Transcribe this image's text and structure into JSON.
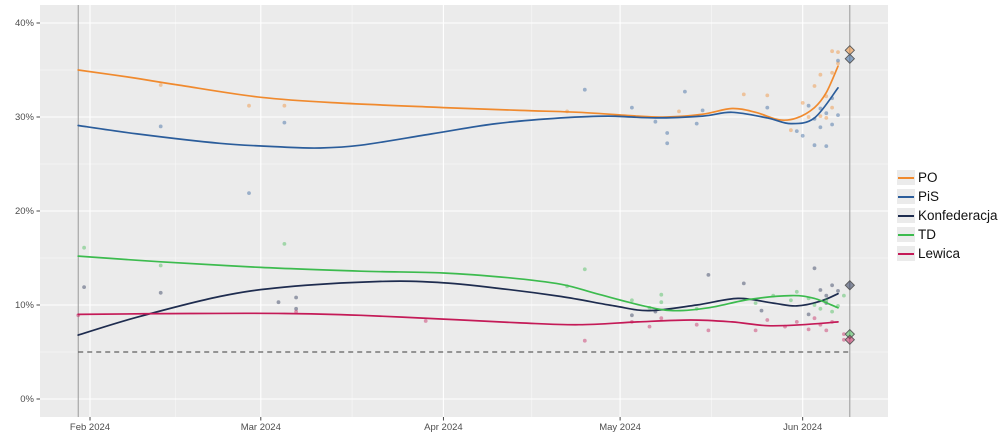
{
  "chart_data": {
    "type": "line",
    "title": "",
    "xlabel": "",
    "ylabel": "",
    "x_axis": {
      "unit": "day-of-year-2024",
      "ticks": [
        {
          "label": "Feb 2024",
          "day": 32
        },
        {
          "label": "Mar 2024",
          "day": 61
        },
        {
          "label": "Apr 2024",
          "day": 92
        },
        {
          "label": "May 2024",
          "day": 122
        },
        {
          "label": "Jun 2024",
          "day": 153
        }
      ],
      "minor_days": [
        46.5,
        76.5,
        107,
        137.5
      ]
    },
    "y_axis": {
      "ticks": [
        {
          "label": "0%",
          "value": 0
        },
        {
          "label": "10%",
          "value": 10
        },
        {
          "label": "20%",
          "value": 20
        },
        {
          "label": "30%",
          "value": 30
        },
        {
          "label": "40%",
          "value": 40
        }
      ],
      "minor_values": [
        5,
        15,
        25,
        35
      ],
      "range": [
        -1.9,
        41.9
      ]
    },
    "grid": true,
    "legend_position": "right",
    "threshold": {
      "value": 5,
      "style": "dashed",
      "color": "#3c3c3c"
    },
    "ref_lines": [
      {
        "day": 30,
        "name": "series-start"
      },
      {
        "day": 161,
        "name": "election-day"
      }
    ],
    "series": [
      {
        "name": "PO",
        "color": "#f08a2e",
        "result_day": 161,
        "result_pct": 37.1,
        "trend": [
          [
            30,
            35.0
          ],
          [
            39,
            34.2
          ],
          [
            47,
            33.4
          ],
          [
            61,
            32.1
          ],
          [
            74,
            31.5
          ],
          [
            92,
            31.0
          ],
          [
            105,
            30.7
          ],
          [
            115,
            30.5
          ],
          [
            125,
            30.1
          ],
          [
            130,
            30.0
          ],
          [
            136,
            30.3
          ],
          [
            141,
            30.9
          ],
          [
            145,
            30.5
          ],
          [
            149,
            29.7
          ],
          [
            152,
            29.9
          ],
          [
            155,
            31.0
          ],
          [
            157,
            32.6
          ],
          [
            159,
            35.4
          ]
        ],
        "polls": [
          [
            44,
            33.4
          ],
          [
            59,
            31.2
          ],
          [
            65,
            31.2
          ],
          [
            113,
            30.6
          ],
          [
            132,
            30.6
          ],
          [
            143,
            32.4
          ],
          [
            147,
            32.3
          ],
          [
            151,
            28.6
          ],
          [
            153,
            31.5
          ],
          [
            154,
            30.0
          ],
          [
            155,
            33.3
          ],
          [
            156,
            34.5
          ],
          [
            156,
            30.1
          ],
          [
            157,
            32.2
          ],
          [
            157,
            29.9
          ],
          [
            158,
            34.7
          ],
          [
            158,
            31.0
          ],
          [
            158,
            37.0
          ],
          [
            159,
            35.7
          ],
          [
            159,
            36.9
          ]
        ]
      },
      {
        "name": "PiS",
        "color": "#2b5d9b",
        "result_day": 161,
        "result_pct": 36.2,
        "trend": [
          [
            30,
            29.1
          ],
          [
            40,
            28.2
          ],
          [
            54,
            27.2
          ],
          [
            65,
            26.8
          ],
          [
            71,
            26.7
          ],
          [
            78,
            27.0
          ],
          [
            90,
            28.2
          ],
          [
            101,
            29.3
          ],
          [
            112,
            29.9
          ],
          [
            120,
            30.1
          ],
          [
            128,
            29.9
          ],
          [
            136,
            30.1
          ],
          [
            141,
            30.5
          ],
          [
            147,
            29.9
          ],
          [
            151,
            29.3
          ],
          [
            155,
            29.9
          ],
          [
            159,
            33.1
          ]
        ],
        "polls": [
          [
            44,
            29.0
          ],
          [
            59,
            21.9
          ],
          [
            65,
            29.4
          ],
          [
            116,
            32.9
          ],
          [
            124,
            31.0
          ],
          [
            128,
            29.5
          ],
          [
            130,
            28.3
          ],
          [
            130,
            27.2
          ],
          [
            133,
            32.7
          ],
          [
            135,
            29.3
          ],
          [
            136,
            30.7
          ],
          [
            147,
            31.0
          ],
          [
            152,
            28.5
          ],
          [
            153,
            28.0
          ],
          [
            154,
            31.2
          ],
          [
            155,
            29.8
          ],
          [
            155,
            27.0
          ],
          [
            156,
            30.9
          ],
          [
            156,
            28.9
          ],
          [
            157,
            30.4
          ],
          [
            157,
            26.9
          ],
          [
            158,
            29.2
          ],
          [
            158,
            32.0
          ],
          [
            159,
            30.2
          ],
          [
            159,
            36.0
          ]
        ]
      },
      {
        "name": "Konfederacja",
        "color": "#1e2c4f",
        "result_day": 161,
        "result_pct": 12.1,
        "trend": [
          [
            30,
            6.8
          ],
          [
            40,
            8.7
          ],
          [
            54,
            10.9
          ],
          [
            65,
            11.9
          ],
          [
            81,
            12.5
          ],
          [
            91,
            12.4
          ],
          [
            101,
            11.8
          ],
          [
            112,
            10.9
          ],
          [
            121,
            9.9
          ],
          [
            127,
            9.4
          ],
          [
            135,
            10.0
          ],
          [
            142,
            10.7
          ],
          [
            148,
            10.2
          ],
          [
            152,
            9.9
          ],
          [
            156,
            10.4
          ],
          [
            159,
            11.2
          ]
        ],
        "polls": [
          [
            31,
            11.9
          ],
          [
            44,
            11.3
          ],
          [
            64,
            10.3
          ],
          [
            67,
            9.6
          ],
          [
            67,
            10.8
          ],
          [
            124,
            8.9
          ],
          [
            128,
            9.3
          ],
          [
            137,
            13.2
          ],
          [
            143,
            12.3
          ],
          [
            146,
            9.4
          ],
          [
            154,
            9.0
          ],
          [
            155,
            13.9
          ],
          [
            156,
            11.6
          ],
          [
            157,
            11.0
          ],
          [
            157,
            10.2
          ],
          [
            158,
            12.1
          ],
          [
            159,
            11.5
          ]
        ]
      },
      {
        "name": "TD",
        "color": "#3cbb4e",
        "result_day": 161,
        "result_pct": 6.9,
        "trend": [
          [
            30,
            15.2
          ],
          [
            44,
            14.6
          ],
          [
            61,
            14.0
          ],
          [
            78,
            13.6
          ],
          [
            92,
            13.4
          ],
          [
            103,
            12.9
          ],
          [
            112,
            12.2
          ],
          [
            118,
            11.2
          ],
          [
            126,
            9.9
          ],
          [
            131,
            9.4
          ],
          [
            137,
            9.7
          ],
          [
            144,
            10.6
          ],
          [
            151,
            11.0
          ],
          [
            155,
            10.7
          ],
          [
            159,
            9.7
          ]
        ],
        "polls": [
          [
            31,
            16.1
          ],
          [
            44,
            14.2
          ],
          [
            65,
            16.5
          ],
          [
            113,
            12.0
          ],
          [
            116,
            13.8
          ],
          [
            124,
            10.5
          ],
          [
            127,
            9.7
          ],
          [
            129,
            11.1
          ],
          [
            129,
            10.3
          ],
          [
            135,
            9.6
          ],
          [
            145,
            10.2
          ],
          [
            148,
            11.0
          ],
          [
            151,
            10.5
          ],
          [
            152,
            11.4
          ],
          [
            154,
            10.7
          ],
          [
            155,
            10.0
          ],
          [
            156,
            9.6
          ],
          [
            157,
            10.5
          ],
          [
            158,
            9.3
          ],
          [
            159,
            9.9
          ],
          [
            160,
            11.0
          ]
        ]
      },
      {
        "name": "Lewica",
        "color": "#c41a57",
        "result_day": 161,
        "result_pct": 6.3,
        "trend": [
          [
            30,
            9.0
          ],
          [
            49,
            9.1
          ],
          [
            65,
            9.1
          ],
          [
            78,
            8.9
          ],
          [
            92,
            8.5
          ],
          [
            105,
            8.1
          ],
          [
            115,
            7.9
          ],
          [
            125,
            8.2
          ],
          [
            134,
            8.4
          ],
          [
            141,
            8.2
          ],
          [
            147,
            7.8
          ],
          [
            153,
            7.9
          ],
          [
            159,
            8.2
          ]
        ],
        "polls": [
          [
            30,
            8.9
          ],
          [
            67,
            9.3
          ],
          [
            89,
            8.3
          ],
          [
            116,
            6.2
          ],
          [
            124,
            8.2
          ],
          [
            127,
            7.7
          ],
          [
            129,
            8.6
          ],
          [
            135,
            7.9
          ],
          [
            137,
            7.3
          ],
          [
            145,
            7.3
          ],
          [
            147,
            8.4
          ],
          [
            150,
            7.7
          ],
          [
            152,
            8.2
          ],
          [
            154,
            7.4
          ],
          [
            155,
            8.6
          ],
          [
            156,
            7.9
          ],
          [
            157,
            7.3
          ],
          [
            158,
            8.2
          ],
          [
            160,
            6.3
          ],
          [
            160,
            6.9
          ]
        ]
      }
    ]
  },
  "legend": {
    "items": [
      {
        "label": "PO",
        "color": "#f08a2e"
      },
      {
        "label": "PiS",
        "color": "#2b5d9b"
      },
      {
        "label": "Konfederacja",
        "color": "#1e2c4f"
      },
      {
        "label": "TD",
        "color": "#3cbb4e"
      },
      {
        "label": "Lewica",
        "color": "#c41a57"
      }
    ]
  },
  "style": {
    "panel_bg": "#ebebeb",
    "grid_major": "#ffffff",
    "grid_minor": "#f6f6f6",
    "ref_line": "#999999",
    "axis_text": "#4d4d4d",
    "tick_mark": "#333333"
  }
}
